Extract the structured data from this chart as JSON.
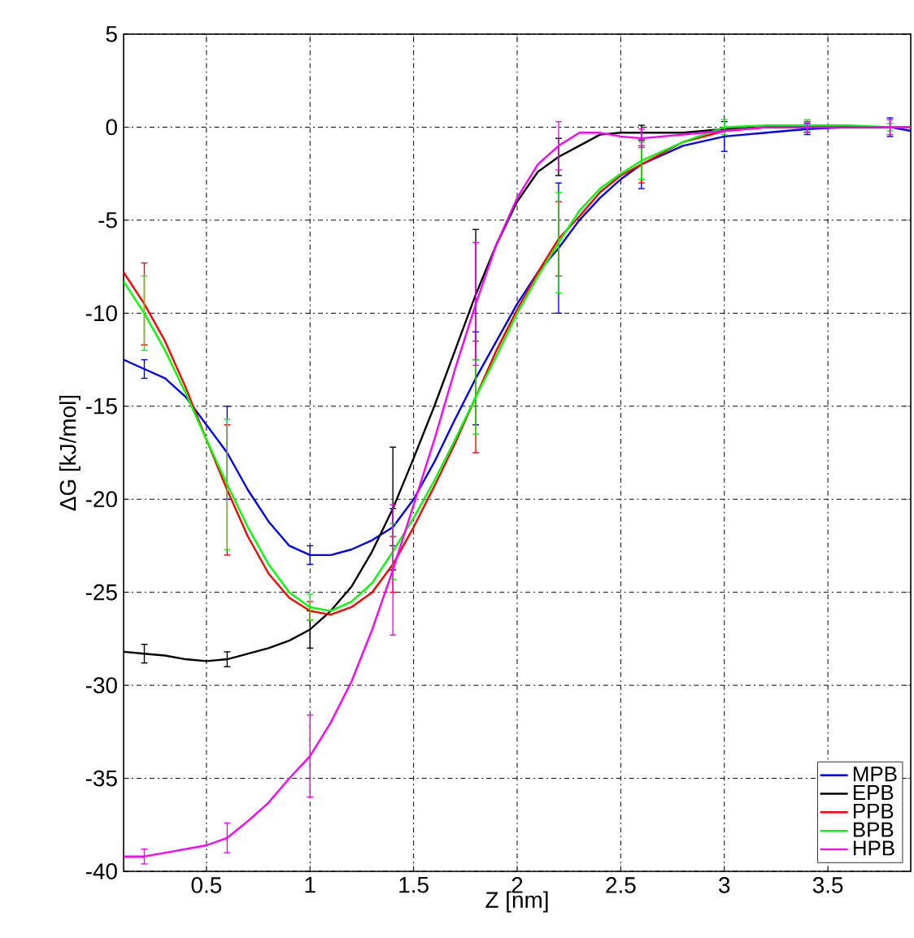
{
  "chart_data": {
    "type": "line",
    "xlabel": "Z [nm]",
    "ylabel": "ΔG [kJ/mol]",
    "x": [
      0.1,
      0.2,
      0.3,
      0.4,
      0.5,
      0.6,
      0.7,
      0.8,
      0.9,
      1.0,
      1.1,
      1.2,
      1.3,
      1.4,
      1.5,
      1.6,
      1.7,
      1.8,
      1.9,
      2.0,
      2.1,
      2.2,
      2.3,
      2.4,
      2.5,
      2.6,
      2.8,
      3.0,
      3.2,
      3.4,
      3.6,
      3.8,
      3.9
    ],
    "xlim": [
      0.1,
      3.9
    ],
    "ylim": [
      -40,
      5
    ],
    "xticks": [
      0.5,
      1,
      1.5,
      2,
      2.5,
      3,
      3.5
    ],
    "yticks": [
      -40,
      -35,
      -30,
      -25,
      -20,
      -15,
      -10,
      -5,
      0,
      5
    ],
    "grid": true,
    "legend": "bottom right",
    "series": [
      {
        "name": "MPB",
        "color": "#0000ff",
        "values": [
          -12.5,
          -13,
          -13.5,
          -14.5,
          -16,
          -17.5,
          -19.5,
          -21.2,
          -22.5,
          -23,
          -23,
          -22.7,
          -22.2,
          -21.5,
          -20,
          -18,
          -15.7,
          -13.5,
          -11.5,
          -9.5,
          -7.8,
          -6.5,
          -5,
          -3.8,
          -2.8,
          -2,
          -1,
          -0.5,
          -0.3,
          -0.1,
          0,
          0,
          -0.2
        ],
        "errors": [
          null,
          0.5,
          null,
          null,
          null,
          2.5,
          null,
          null,
          null,
          0.5,
          null,
          null,
          null,
          1,
          null,
          null,
          null,
          2.5,
          null,
          null,
          null,
          3.5,
          null,
          null,
          null,
          1.3,
          null,
          0.8,
          null,
          0.3,
          null,
          0.5,
          null
        ]
      },
      {
        "name": "EPB",
        "color": "#000000",
        "values": [
          -28.2,
          -28.3,
          -28.4,
          -28.6,
          -28.7,
          -28.6,
          -28.3,
          -28,
          -27.6,
          -27,
          -26,
          -24.7,
          -22.8,
          -20.5,
          -17.8,
          -15,
          -12,
          -9,
          -6.3,
          -4,
          -2.4,
          -1.6,
          -1,
          -0.4,
          -0.3,
          -0.3,
          -0.3,
          -0.1,
          0,
          0,
          0,
          0,
          0
        ],
        "errors": [
          null,
          0.5,
          null,
          null,
          null,
          0.4,
          null,
          null,
          null,
          1,
          null,
          null,
          null,
          3.3,
          null,
          null,
          null,
          3.5,
          null,
          null,
          null,
          1,
          null,
          null,
          null,
          0.4,
          null,
          null,
          null,
          0.3,
          null,
          null,
          null
        ]
      },
      {
        "name": "PPB",
        "color": "#ff0000",
        "values": [
          -7.8,
          -9.5,
          -11.5,
          -14,
          -16.8,
          -19.5,
          -22,
          -24,
          -25.3,
          -26,
          -26.2,
          -25.8,
          -25,
          -23.5,
          -21.5,
          -19.3,
          -17,
          -14.5,
          -12,
          -9.8,
          -7.8,
          -6,
          -4.8,
          -3.5,
          -2.6,
          -2,
          -0.8,
          -0.2,
          0,
          null,
          null,
          null,
          null
        ],
        "errors": [
          null,
          2.2,
          null,
          null,
          null,
          3.5,
          null,
          null,
          null,
          0.5,
          null,
          null,
          null,
          1.5,
          null,
          null,
          null,
          3,
          null,
          null,
          null,
          2,
          null,
          null,
          null,
          1,
          null,
          null,
          null,
          null,
          null,
          null,
          null
        ]
      },
      {
        "name": "BPB",
        "color": "#00ff00",
        "values": [
          -8.3,
          -10,
          -12,
          -14.3,
          -16.8,
          -19.2,
          -21.5,
          -23.5,
          -25,
          -25.8,
          -26,
          -25.5,
          -24.5,
          -22.8,
          -21,
          -19,
          -16.8,
          -14.5,
          -12.3,
          -10,
          -8,
          -6.2,
          -4.5,
          -3.3,
          -2.5,
          -1.8,
          -0.8,
          0,
          0.1,
          0.1,
          0.1,
          0,
          0
        ],
        "errors": [
          null,
          2,
          null,
          null,
          null,
          3.5,
          null,
          null,
          null,
          0.7,
          null,
          null,
          null,
          1.5,
          null,
          null,
          null,
          2,
          null,
          null,
          null,
          2.7,
          null,
          null,
          null,
          1,
          null,
          0.4,
          null,
          0.3,
          null,
          0.2,
          null
        ]
      },
      {
        "name": "HPB",
        "color": "#ff00ff",
        "values": [
          -39.2,
          -39.2,
          -39,
          -38.8,
          -38.6,
          -38.2,
          -37.3,
          -36.3,
          -35,
          -33.8,
          -32,
          -29.8,
          -27,
          -23.8,
          -20.3,
          -16.8,
          -13,
          -9.5,
          -6.3,
          -3.8,
          -2,
          -1,
          -0.3,
          -0.3,
          -0.5,
          -0.6,
          -0.4,
          -0.2,
          0,
          0,
          0,
          0,
          0
        ],
        "errors": [
          null,
          0.4,
          null,
          null,
          null,
          0.8,
          null,
          null,
          null,
          2.2,
          null,
          null,
          null,
          3.5,
          null,
          null,
          null,
          3.3,
          null,
          null,
          null,
          1.3,
          null,
          null,
          null,
          0.5,
          null,
          null,
          null,
          0.3,
          null,
          0.4,
          null
        ]
      }
    ]
  }
}
